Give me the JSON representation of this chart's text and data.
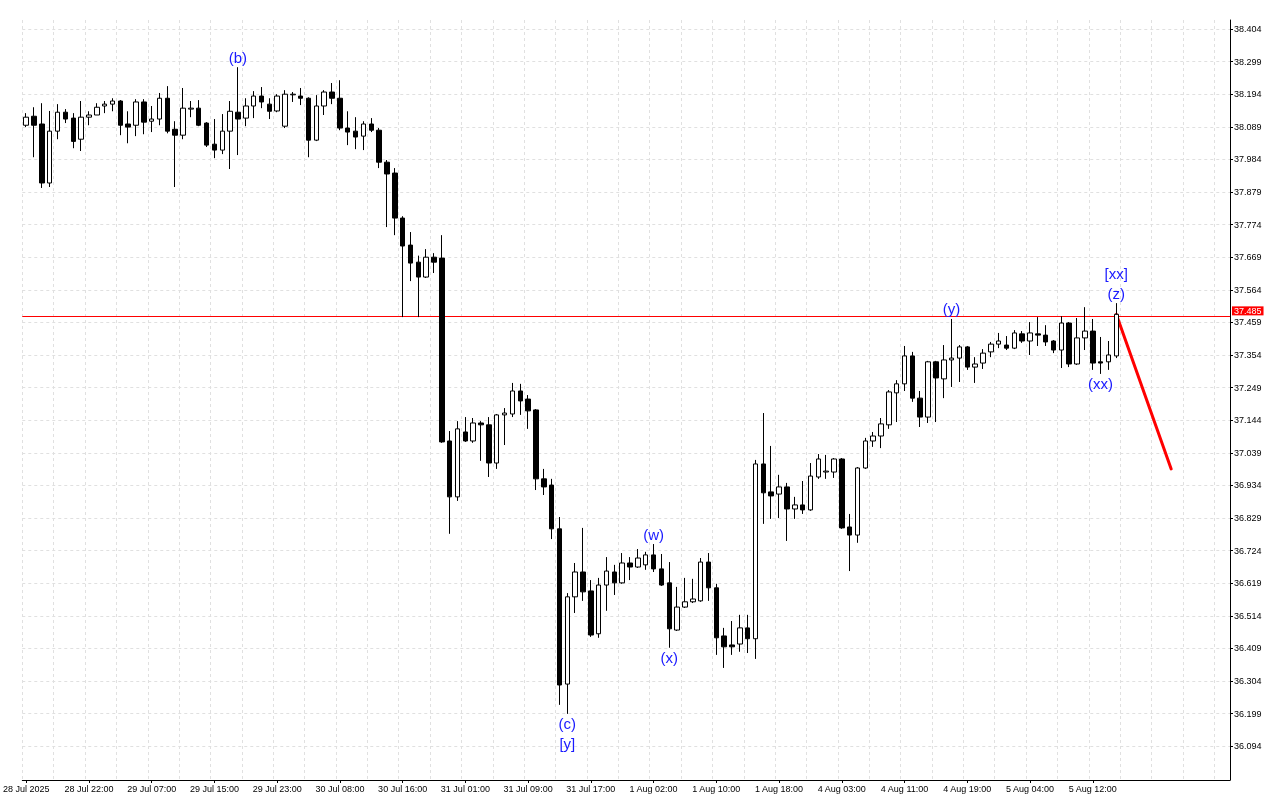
{
  "chart_data": {
    "type": "candlestick",
    "categories": [
      "28 Jul 2025",
      null,
      null,
      null,
      null,
      null,
      null,
      null,
      "28 Jul 22:00",
      null,
      null,
      null,
      null,
      null,
      null,
      null,
      "29 Jul 07:00",
      null,
      null,
      null,
      null,
      null,
      null,
      null,
      "29 Jul 15:00",
      null,
      null,
      null,
      null,
      null,
      null,
      null,
      "29 Jul 23:00",
      null,
      null,
      null,
      null,
      null,
      null,
      null,
      "30 Jul 08:00",
      null,
      null,
      null,
      null,
      null,
      null,
      null,
      "30 Jul 16:00",
      null,
      null,
      null,
      null,
      null,
      null,
      null,
      "31 Jul 01:00",
      null,
      null,
      null,
      null,
      null,
      null,
      null,
      "31 Jul 09:00",
      null,
      null,
      null,
      null,
      null,
      null,
      null,
      "31 Jul 17:00",
      null,
      null,
      null,
      null,
      null,
      null,
      null,
      "1 Aug 02:00",
      null,
      null,
      null,
      null,
      null,
      null,
      null,
      "1 Aug 10:00",
      null,
      null,
      null,
      null,
      null,
      null,
      null,
      "1 Aug 18:00",
      null,
      null,
      null,
      null,
      null,
      null,
      null,
      "4 Aug 03:00",
      null,
      null,
      null,
      null,
      null,
      null,
      null,
      "4 Aug 11:00",
      null,
      null,
      null,
      null,
      null,
      null,
      null,
      "4 Aug 19:00",
      null,
      null,
      null,
      null,
      null,
      null,
      null,
      "5 Aug 04:00",
      null,
      null,
      null,
      null,
      null,
      null,
      null,
      "5 Aug 12:00",
      null,
      null,
      null,
      null,
      null,
      null,
      null,
      null,
      null,
      null,
      null,
      null,
      null,
      null,
      null,
      null,
      null
    ],
    "ohlc": [
      [
        38.094,
        38.133,
        38.088,
        38.12
      ],
      [
        38.123,
        38.152,
        37.991,
        38.094
      ],
      [
        38.098,
        38.165,
        37.892,
        37.908
      ],
      [
        37.908,
        38.14,
        37.895,
        38.075
      ],
      [
        38.075,
        38.162,
        38.049,
        38.136
      ],
      [
        38.136,
        38.146,
        38.101,
        38.114
      ],
      [
        38.117,
        38.133,
        38.02,
        38.042
      ],
      [
        38.049,
        38.172,
        38.011,
        38.12
      ],
      [
        38.12,
        38.139,
        38.094,
        38.127
      ],
      [
        38.127,
        38.165,
        38.127,
        38.152
      ],
      [
        38.156,
        38.172,
        38.133,
        38.162
      ],
      [
        38.162,
        38.181,
        38.139,
        38.172
      ],
      [
        38.172,
        38.175,
        38.062,
        38.094
      ],
      [
        38.098,
        38.139,
        38.036,
        38.088
      ],
      [
        38.094,
        38.178,
        38.059,
        38.169
      ],
      [
        38.169,
        38.178,
        38.065,
        38.104
      ],
      [
        38.107,
        38.156,
        38.072,
        38.114
      ],
      [
        38.114,
        38.198,
        38.094,
        38.181
      ],
      [
        38.181,
        38.22,
        38.068,
        38.075
      ],
      [
        38.081,
        38.107,
        37.895,
        38.062
      ],
      [
        38.062,
        38.214,
        38.049,
        38.149
      ],
      [
        38.146,
        38.172,
        38.12,
        38.149
      ],
      [
        38.149,
        38.175,
        38.091,
        38.094
      ],
      [
        38.101,
        38.104,
        38.024,
        38.03
      ],
      [
        38.033,
        38.114,
        37.988,
        38.014
      ],
      [
        38.014,
        38.13,
        38.001,
        38.075
      ],
      [
        38.075,
        38.172,
        37.953,
        38.139
      ],
      [
        38.136,
        38.281,
        37.998,
        38.114
      ],
      [
        38.117,
        38.181,
        38.091,
        38.156
      ],
      [
        38.156,
        38.204,
        38.117,
        38.188
      ],
      [
        38.188,
        38.217,
        38.149,
        38.169
      ],
      [
        38.162,
        38.181,
        38.114,
        38.139
      ],
      [
        38.14,
        38.194,
        38.136,
        38.188
      ],
      [
        38.091,
        38.207,
        38.085,
        38.194
      ],
      [
        38.192,
        38.201,
        38.169,
        38.194
      ],
      [
        38.188,
        38.214,
        38.159,
        38.181
      ],
      [
        38.181,
        38.184,
        37.991,
        38.046
      ],
      [
        38.046,
        38.191,
        38.043,
        38.156
      ],
      [
        38.156,
        38.207,
        38.127,
        38.201
      ],
      [
        38.201,
        38.23,
        38.162,
        38.181
      ],
      [
        38.181,
        38.239,
        38.078,
        38.085
      ],
      [
        38.085,
        38.139,
        38.03,
        38.072
      ],
      [
        38.075,
        38.12,
        38.017,
        38.056
      ],
      [
        38.059,
        38.107,
        38.014,
        38.098
      ],
      [
        38.098,
        38.117,
        38.072,
        38.078
      ],
      [
        38.078,
        38.085,
        37.956,
        37.975
      ],
      [
        37.975,
        37.982,
        37.766,
        37.937
      ],
      [
        37.94,
        37.956,
        37.74,
        37.795
      ],
      [
        37.795,
        37.801,
        37.476,
        37.705
      ],
      [
        37.708,
        37.75,
        37.592,
        37.65
      ],
      [
        37.653,
        37.674,
        37.476,
        37.605
      ],
      [
        37.605,
        37.695,
        37.602,
        37.669
      ],
      [
        37.669,
        37.682,
        37.618,
        37.653
      ],
      [
        37.666,
        37.74,
        37.071,
        37.074
      ],
      [
        37.077,
        37.109,
        36.778,
        36.897
      ],
      [
        36.897,
        37.141,
        36.884,
        37.116
      ],
      [
        37.106,
        37.154,
        37.074,
        37.077
      ],
      [
        37.077,
        37.151,
        37.071,
        37.135
      ],
      [
        37.135,
        37.141,
        37.013,
        37.129
      ],
      [
        37.129,
        37.154,
        36.961,
        37.006
      ],
      [
        37.006,
        37.164,
        36.987,
        37.161
      ],
      [
        37.161,
        37.183,
        37.064,
        37.167
      ],
      [
        37.164,
        37.264,
        37.154,
        37.238
      ],
      [
        37.238,
        37.261,
        37.161,
        37.206
      ],
      [
        37.212,
        37.225,
        37.116,
        37.174
      ],
      [
        37.177,
        37.18,
        36.919,
        36.955
      ],
      [
        36.955,
        36.987,
        36.903,
        36.929
      ],
      [
        36.935,
        36.955,
        36.761,
        36.794
      ],
      [
        36.794,
        36.832,
        36.227,
        36.291
      ],
      [
        36.294,
        36.587,
        36.198,
        36.575
      ],
      [
        36.575,
        36.684,
        36.523,
        36.655
      ],
      [
        36.655,
        36.797,
        36.562,
        36.591
      ],
      [
        36.594,
        36.629,
        36.446,
        36.452
      ],
      [
        36.456,
        36.636,
        36.443,
        36.613
      ],
      [
        36.613,
        36.703,
        36.53,
        36.658
      ],
      [
        36.655,
        36.678,
        36.581,
        36.62
      ],
      [
        36.62,
        36.716,
        36.617,
        36.684
      ],
      [
        36.684,
        36.703,
        36.629,
        36.671
      ],
      [
        36.671,
        36.729,
        36.668,
        36.7
      ],
      [
        36.678,
        36.72,
        36.662,
        36.71
      ],
      [
        36.71,
        36.745,
        36.655,
        36.665
      ],
      [
        36.665,
        36.713,
        36.61,
        36.613
      ],
      [
        36.62,
        36.687,
        36.411,
        36.472
      ],
      [
        36.468,
        36.607,
        36.465,
        36.542
      ],
      [
        36.542,
        36.636,
        36.539,
        36.559
      ],
      [
        36.559,
        36.633,
        36.555,
        36.568
      ],
      [
        36.562,
        36.7,
        36.559,
        36.687
      ],
      [
        36.687,
        36.716,
        36.562,
        36.604
      ],
      [
        36.604,
        36.617,
        36.388,
        36.443
      ],
      [
        36.449,
        36.475,
        36.346,
        36.414
      ],
      [
        36.42,
        36.497,
        36.388,
        36.414
      ],
      [
        36.423,
        36.517,
        36.398,
        36.475
      ],
      [
        36.475,
        36.517,
        36.394,
        36.44
      ],
      [
        36.44,
        37.016,
        36.375,
        37.003
      ],
      [
        37.003,
        37.167,
        36.81,
        36.91
      ],
      [
        36.913,
        37.061,
        36.826,
        36.9
      ],
      [
        36.906,
        36.968,
        36.829,
        36.929
      ],
      [
        36.929,
        36.942,
        36.755,
        36.858
      ],
      [
        36.858,
        36.897,
        36.826,
        36.871
      ],
      [
        36.871,
        36.948,
        36.842,
        36.855
      ],
      [
        36.855,
        37.006,
        36.852,
        36.964
      ],
      [
        36.961,
        37.035,
        36.955,
        37.019
      ],
      [
        36.977,
        37.032,
        36.955,
        36.98
      ],
      [
        36.977,
        37.022,
        36.958,
        37.019
      ],
      [
        37.019,
        37.022,
        36.794,
        36.797
      ],
      [
        36.8,
        36.842,
        36.658,
        36.774
      ],
      [
        36.774,
        36.993,
        36.749,
        36.99
      ],
      [
        36.99,
        37.087,
        36.987,
        37.077
      ],
      [
        37.077,
        37.106,
        37.058,
        37.093
      ],
      [
        37.093,
        37.151,
        37.054,
        37.132
      ],
      [
        37.129,
        37.241,
        37.116,
        37.235
      ],
      [
        37.232,
        37.273,
        37.138,
        37.261
      ],
      [
        37.261,
        37.383,
        37.238,
        37.351
      ],
      [
        37.351,
        37.364,
        37.203,
        37.215
      ],
      [
        37.215,
        37.238,
        37.122,
        37.154
      ],
      [
        37.154,
        37.335,
        37.135,
        37.332
      ],
      [
        37.332,
        37.335,
        37.138,
        37.28
      ],
      [
        37.277,
        37.386,
        37.215,
        37.338
      ],
      [
        37.338,
        37.47,
        37.251,
        37.344
      ],
      [
        37.344,
        37.386,
        37.267,
        37.38
      ],
      [
        37.38,
        37.383,
        37.306,
        37.315
      ],
      [
        37.315,
        37.347,
        37.264,
        37.325
      ],
      [
        37.328,
        37.373,
        37.309,
        37.36
      ],
      [
        37.364,
        37.396,
        37.347,
        37.389
      ],
      [
        37.389,
        37.425,
        37.376,
        37.399
      ],
      [
        37.386,
        37.415,
        37.37,
        37.376
      ],
      [
        37.376,
        37.434,
        37.373,
        37.425
      ],
      [
        37.422,
        37.431,
        37.393,
        37.399
      ],
      [
        37.399,
        37.46,
        37.354,
        37.425
      ],
      [
        37.422,
        37.476,
        37.383,
        37.418
      ],
      [
        37.418,
        37.45,
        37.383,
        37.396
      ],
      [
        37.399,
        37.402,
        37.36,
        37.37
      ],
      [
        37.37,
        37.479,
        37.312,
        37.457
      ],
      [
        37.457,
        37.46,
        37.315,
        37.325
      ],
      [
        37.325,
        37.473,
        37.322,
        37.409
      ],
      [
        37.409,
        37.508,
        37.37,
        37.431
      ],
      [
        37.431,
        37.47,
        37.306,
        37.328
      ],
      [
        37.332,
        37.412,
        37.293,
        37.328
      ],
      [
        37.332,
        37.399,
        37.306,
        37.354
      ],
      [
        37.351,
        37.521,
        37.344,
        37.485
      ],
      null,
      null,
      null,
      null,
      null,
      null,
      null,
      null,
      null,
      null,
      null,
      null,
      null,
      null
    ],
    "series": [
      {
        "type": "line",
        "color": "#ff0000",
        "values": [
          null,
          null,
          null,
          null,
          null,
          null,
          null,
          null,
          null,
          null,
          null,
          null,
          null,
          null,
          null,
          null,
          null,
          null,
          null,
          null,
          null,
          null,
          null,
          null,
          null,
          null,
          null,
          null,
          null,
          null,
          null,
          null,
          null,
          null,
          null,
          null,
          null,
          null,
          null,
          null,
          null,
          null,
          null,
          null,
          null,
          null,
          null,
          null,
          null,
          null,
          null,
          null,
          null,
          null,
          null,
          null,
          null,
          null,
          null,
          null,
          null,
          null,
          null,
          null,
          null,
          null,
          null,
          null,
          null,
          null,
          null,
          null,
          null,
          null,
          null,
          null,
          null,
          null,
          null,
          null,
          null,
          null,
          null,
          null,
          null,
          null,
          null,
          null,
          null,
          null,
          null,
          null,
          null,
          null,
          null,
          null,
          null,
          null,
          null,
          null,
          null,
          null,
          null,
          null,
          null,
          null,
          null,
          null,
          null,
          null,
          null,
          null,
          null,
          null,
          null,
          null,
          null,
          null,
          null,
          null,
          null,
          null,
          null,
          null,
          null,
          null,
          null,
          null,
          null,
          null,
          null,
          null,
          null,
          null,
          null,
          null,
          null,
          null,
          null,
          37.485,
          null,
          null,
          null,
          null,
          null,
          null,
          36.987,
          null,
          null,
          null,
          null,
          null,
          null,
          null
        ]
      }
    ],
    "ylim": [
      35.985,
      38.433
    ],
    "yticks": [
      36.094,
      36.199,
      36.304,
      36.409,
      36.514,
      36.619,
      36.724,
      36.829,
      36.934,
      37.039,
      37.144,
      37.249,
      37.354,
      37.459,
      37.564,
      37.669,
      37.774,
      37.879,
      37.984,
      38.089,
      38.194,
      38.299,
      38.404
    ],
    "grid": true,
    "ref_lines": [
      {
        "axis": "y",
        "value": 37.485,
        "label": "37.485",
        "color": "#ff0000"
      }
    ],
    "annotations": [
      "(b)",
      "(c)",
      "[y]",
      "(w)",
      "(x)",
      "(y)",
      "[xx]",
      "(z)",
      "(xx)"
    ]
  }
}
